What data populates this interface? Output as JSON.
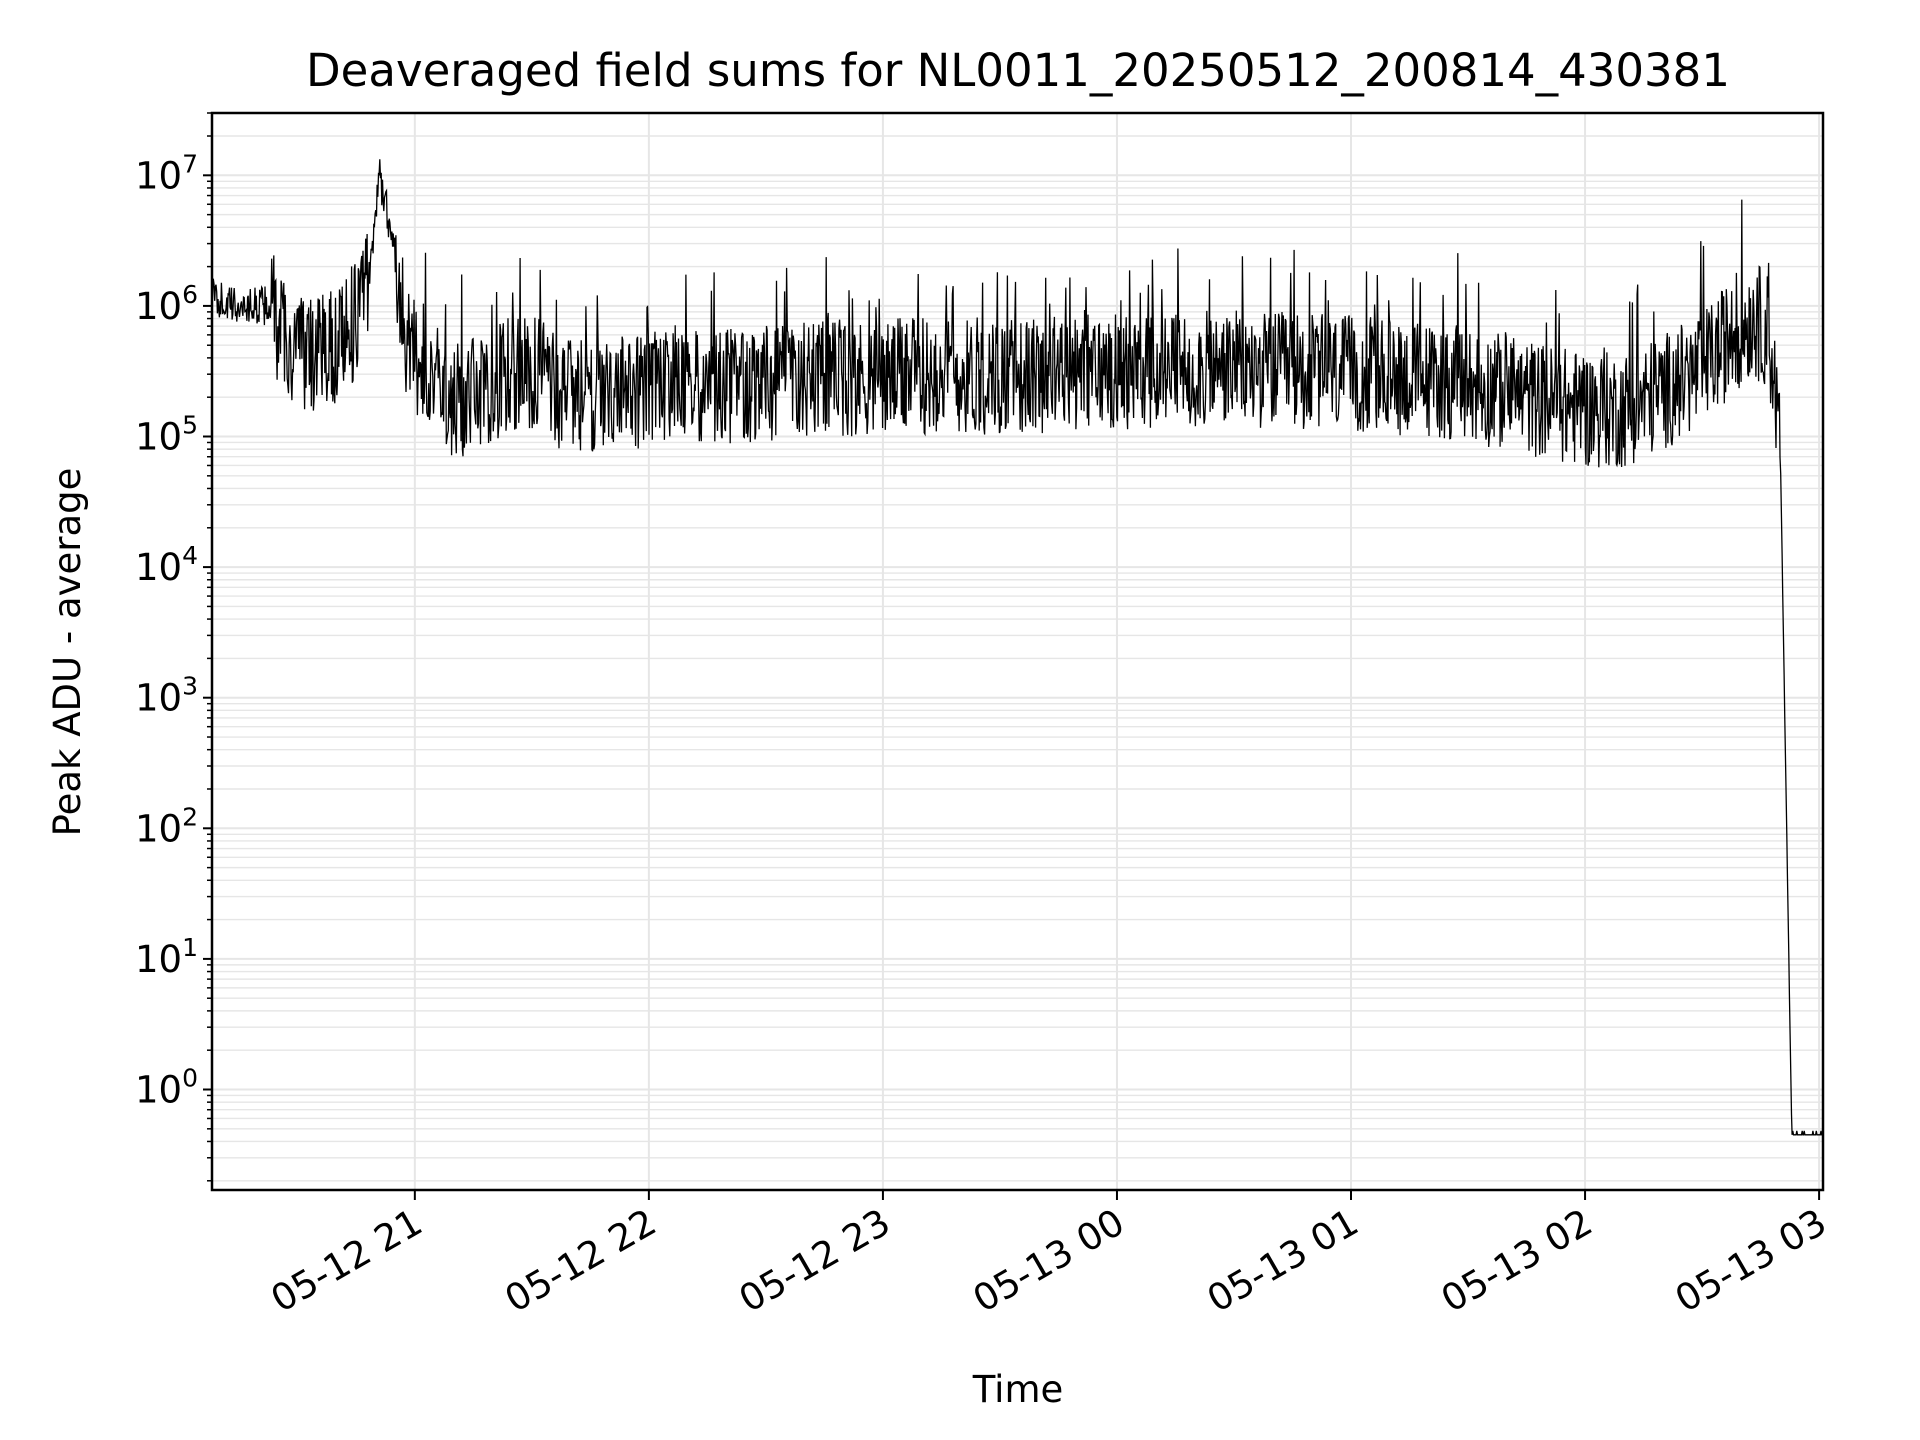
{
  "chart_data": {
    "type": "line",
    "title": "Deaveraged field sums for NL0011_20250512_200814_430381",
    "xlabel": "Time",
    "ylabel": "Peak ADU - average",
    "yscale": "log",
    "ylim": [
      0.17,
      30000000
    ],
    "xlim": [
      "2025-05-12 20:08",
      "2025-05-13 03:01"
    ],
    "grid": true,
    "line_color": "#000000",
    "grid_color": "#e6e6e6",
    "x_ticks": [
      {
        "value": "2025-05-12 21:00",
        "label": "05-12 21"
      },
      {
        "value": "2025-05-12 22:00",
        "label": "05-12 22"
      },
      {
        "value": "2025-05-12 23:00",
        "label": "05-12 23"
      },
      {
        "value": "2025-05-13 00:00",
        "label": "05-13 00"
      },
      {
        "value": "2025-05-13 01:00",
        "label": "05-13 01"
      },
      {
        "value": "2025-05-13 02:00",
        "label": "05-13 02"
      },
      {
        "value": "2025-05-13 03:00",
        "label": "05-13 03"
      }
    ],
    "y_ticks": [
      {
        "value": 1,
        "base": "10",
        "exp": "0"
      },
      {
        "value": 10,
        "base": "10",
        "exp": "1"
      },
      {
        "value": 100,
        "base": "10",
        "exp": "2"
      },
      {
        "value": 1000,
        "base": "10",
        "exp": "3"
      },
      {
        "value": 10000,
        "base": "10",
        "exp": "4"
      },
      {
        "value": 100000,
        "base": "10",
        "exp": "5"
      },
      {
        "value": 1000000,
        "base": "10",
        "exp": "6"
      },
      {
        "value": 10000000,
        "base": "10",
        "exp": "7"
      }
    ],
    "series": [
      {
        "x": [
          "2025-05-12 20:08",
          "2025-05-12 20:13",
          "2025-05-12 20:18",
          "2025-05-12 20:23",
          "2025-05-12 20:28",
          "2025-05-12 20:33",
          "2025-05-12 20:38",
          "2025-05-12 20:43",
          "2025-05-12 20:48",
          "2025-05-12 20:51",
          "2025-05-12 20:53",
          "2025-05-12 20:55",
          "2025-05-12 20:58",
          "2025-05-12 21:03",
          "2025-05-12 21:10",
          "2025-05-12 21:20",
          "2025-05-12 21:30",
          "2025-05-12 21:40",
          "2025-05-12 21:50",
          "2025-05-12 22:00",
          "2025-05-12 22:15",
          "2025-05-12 22:30",
          "2025-05-12 22:45",
          "2025-05-12 23:00",
          "2025-05-12 23:15",
          "2025-05-12 23:30",
          "2025-05-12 23:45",
          "2025-05-13 00:00",
          "2025-05-13 00:15",
          "2025-05-13 00:30",
          "2025-05-13 00:45",
          "2025-05-13 01:00",
          "2025-05-13 01:15",
          "2025-05-13 01:30",
          "2025-05-13 01:45",
          "2025-05-13 02:00",
          "2025-05-13 02:10",
          "2025-05-13 02:20",
          "2025-05-13 02:30",
          "2025-05-13 02:38",
          "2025-05-13 02:43",
          "2025-05-13 02:47",
          "2025-05-13 02:50",
          "2025-05-13 02:53",
          "2025-05-13 03:01"
        ],
        "y": [
          1200000,
          1000000,
          1000000,
          1000000,
          450000,
          400000,
          450000,
          600000,
          1500000,
          10000000,
          5000000,
          2500000,
          500000,
          300000,
          180000,
          250000,
          300000,
          200000,
          220000,
          230000,
          230000,
          250000,
          280000,
          280000,
          300000,
          280000,
          300000,
          320000,
          320000,
          330000,
          320000,
          300000,
          280000,
          250000,
          200000,
          160000,
          160000,
          220000,
          320000,
          600000,
          800000,
          650000,
          100000,
          0.45,
          0.45
        ]
      }
    ]
  }
}
